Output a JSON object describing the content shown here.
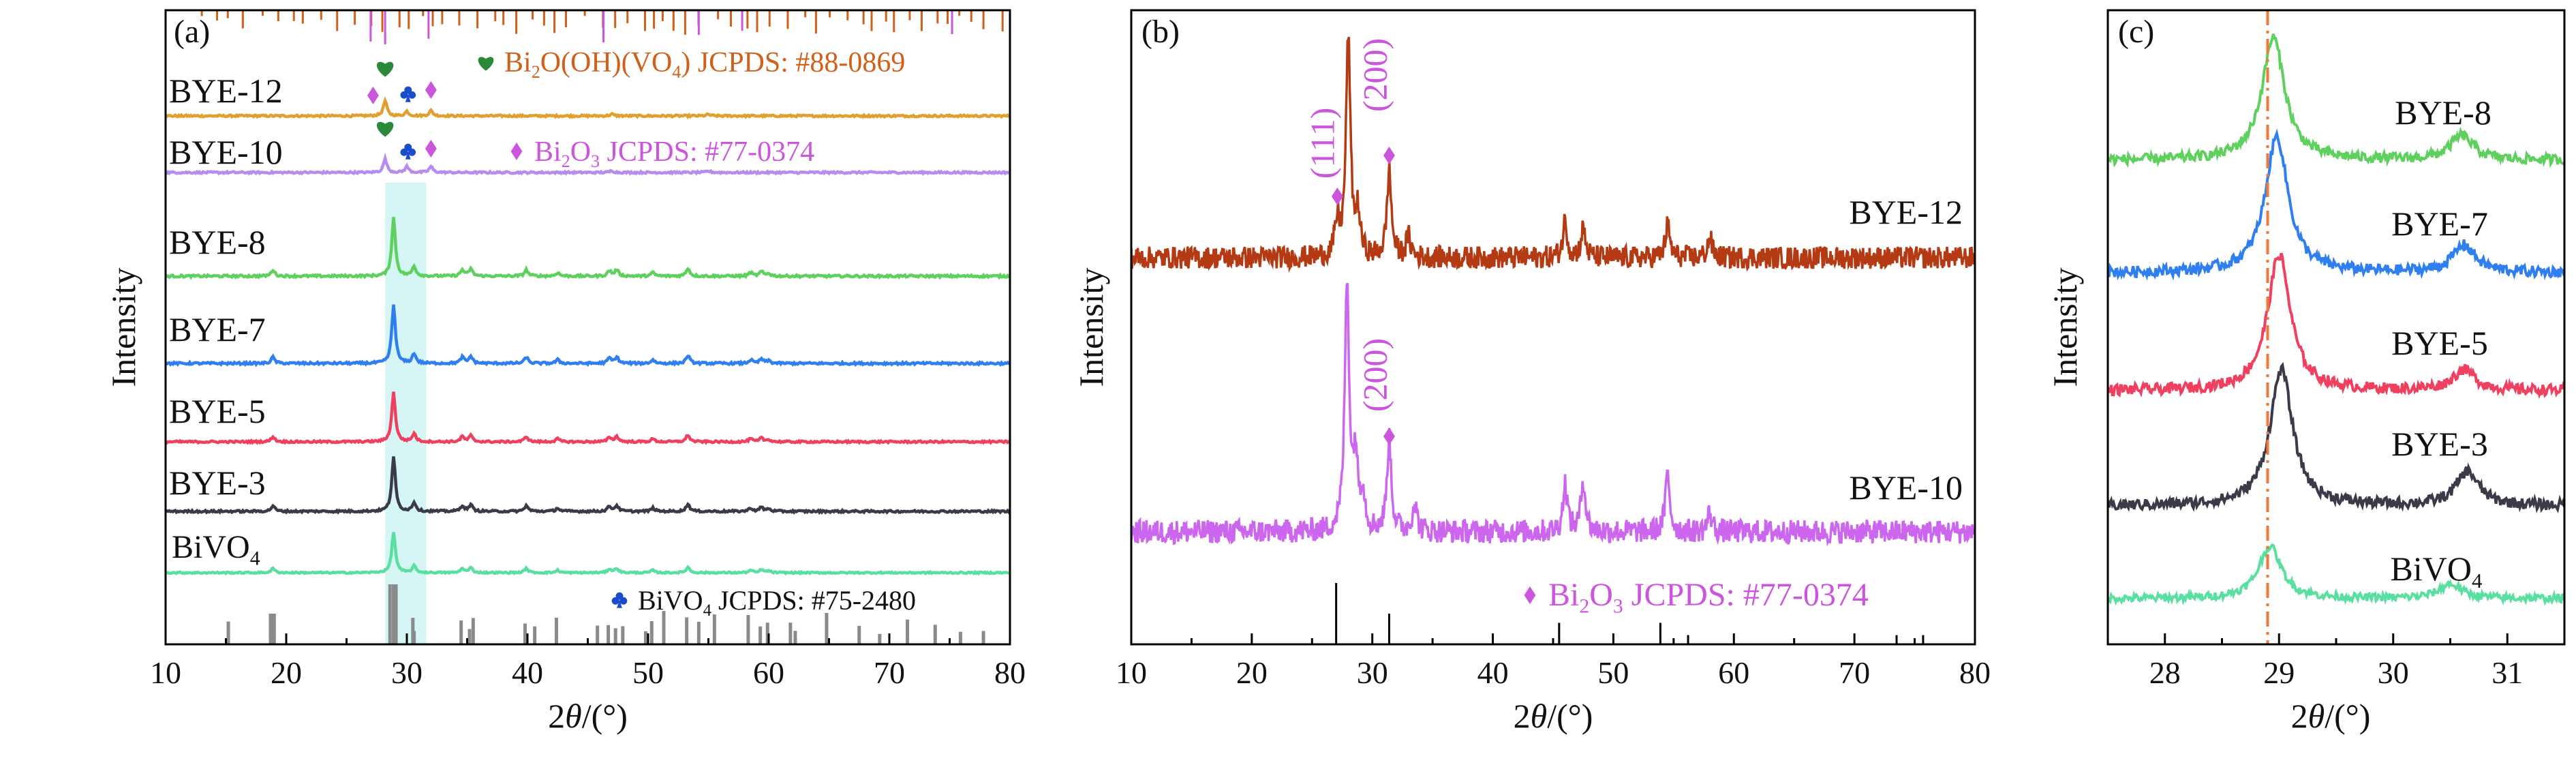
{
  "colors": {
    "bye12": "#e0a030",
    "bye10": "#b78cf0",
    "bye8": "#5ed05e",
    "bye7": "#2f7ff0",
    "bye5": "#ef4060",
    "bye3": "#3a3a48",
    "bivo4": "#59e0a0",
    "b_bye12": "#b43a14",
    "b_bye10": "#cc66ee",
    "ref_ortho": "#d0601a",
    "ref_bi2o3": "#cc55dd",
    "ref_bivo4": "#8a8a8a",
    "heart": "#2a8a3a",
    "club": "#1a4dcc",
    "highlight": "#aeeeee",
    "dashdot": "#f07838"
  },
  "icons": {
    "heart": "heart-icon",
    "diamond": "diamond-icon",
    "club": "club-icon"
  },
  "chart_data": [
    {
      "panel": "(a)",
      "type": "line",
      "xlabel": "2θ/(°)",
      "ylabel": "Intensity",
      "xlim": [
        10,
        80
      ],
      "xticks": [
        10,
        20,
        30,
        40,
        50,
        60,
        70,
        80
      ],
      "series_labels": [
        "BYE-12",
        "BYE-10",
        "BYE-8",
        "BYE-7",
        "BYE-5",
        "BYE-3",
        "BiVO₄"
      ],
      "peaks": {
        "BYE-12": [
          [
            28.2,
            1.0
          ],
          [
            30.0,
            0.3
          ],
          [
            32.0,
            0.35
          ],
          [
            47.0,
            0.12
          ],
          [
            55.0,
            0.1
          ]
        ],
        "BYE-10": [
          [
            28.2,
            0.9
          ],
          [
            30.0,
            0.4
          ],
          [
            32.0,
            0.4
          ],
          [
            47.0,
            0.12
          ],
          [
            55.0,
            0.1
          ]
        ],
        "BiVO4_type": [
          [
            18.9,
            0.35
          ],
          [
            28.9,
            3.3
          ],
          [
            30.6,
            0.55
          ],
          [
            34.6,
            0.35
          ],
          [
            35.3,
            0.4
          ],
          [
            39.9,
            0.35
          ],
          [
            42.5,
            0.2
          ],
          [
            46.8,
            0.3
          ],
          [
            47.4,
            0.35
          ],
          [
            50.4,
            0.2
          ],
          [
            53.3,
            0.45
          ],
          [
            58.5,
            0.2
          ],
          [
            59.4,
            0.25
          ],
          [
            60.0,
            0.15
          ]
        ]
      },
      "highlight_range": [
        28.2,
        31.6
      ],
      "annotations": [
        {
          "symbol": "heart",
          "text_parts": [
            "Bi",
            "2",
            "O(OH)(VO",
            "4",
            ") JCPDS: #88-0869"
          ]
        },
        {
          "symbol": "diamond",
          "text_parts": [
            "Bi",
            "2",
            "O",
            "3",
            " JCPDS: #77-0374"
          ]
        },
        {
          "symbol": "club",
          "text_parts": [
            "BiVO",
            "4",
            " JCPDS: #75-2480"
          ]
        }
      ],
      "ref_bivo4_lines": [
        15.2,
        18.7,
        18.9,
        19.0,
        28.6,
        28.9,
        29.1,
        30.5,
        30.6,
        34.5,
        35.2,
        35.5,
        39.8,
        40.6,
        42.4,
        45.8,
        46.7,
        47.3,
        47.9,
        49.8,
        50.3,
        51.3,
        53.2,
        54.2,
        55.5,
        58.3,
        59.3,
        59.9,
        61.8,
        62.2,
        64.8,
        67.5,
        69.2,
        71.5,
        73.8,
        75.9,
        77.8
      ]
    },
    {
      "panel": "(b)",
      "type": "line",
      "xlabel": "2θ/(°)",
      "ylabel": "Intensity",
      "xlim": [
        10,
        80
      ],
      "xticks": [
        10,
        20,
        30,
        40,
        50,
        60,
        70,
        80
      ],
      "series": [
        {
          "name": "BYE-12",
          "peaks": [
            [
              27.1,
              0.8
            ],
            [
              28.0,
              5.4
            ],
            [
              28.8,
              1.0
            ],
            [
              31.4,
              2.1
            ],
            [
              33.0,
              0.5
            ],
            [
              46.0,
              0.9
            ],
            [
              47.5,
              0.7
            ],
            [
              54.5,
              0.8
            ],
            [
              58.0,
              0.5
            ]
          ]
        },
        {
          "name": "BYE-10",
          "peaks": [
            [
              27.9,
              5.2
            ],
            [
              28.6,
              1.5
            ],
            [
              29.2,
              0.8
            ],
            [
              31.4,
              1.9
            ],
            [
              33.5,
              0.6
            ],
            [
              46.0,
              1.0
            ],
            [
              47.5,
              1.1
            ],
            [
              54.5,
              1.2
            ],
            [
              58.0,
              0.4
            ]
          ]
        }
      ],
      "peak_labels": [
        "(111)",
        "(200)",
        "(200)"
      ],
      "ref_text_parts": [
        "Bi",
        "2",
        "O",
        "3",
        " JCPDS: #77-0374"
      ],
      "ref_lines": [
        [
          27.0,
          1.0
        ],
        [
          31.4,
          0.5
        ],
        [
          45.5,
          0.35
        ],
        [
          53.9,
          0.35
        ],
        [
          56.2,
          0.15
        ],
        [
          73.5,
          0.15
        ],
        [
          75.7,
          0.15
        ]
      ]
    },
    {
      "panel": "(c)",
      "type": "line",
      "xlabel": "2θ/(°)",
      "ylabel": "Intensity",
      "xlim": [
        27.5,
        31.5
      ],
      "xticks": [
        28,
        29,
        30,
        31
      ],
      "series": [
        {
          "name": "BYE-8",
          "peaks": [
            [
              28.95,
              1.0
            ],
            [
              30.6,
              0.2
            ]
          ]
        },
        {
          "name": "BYE-7",
          "peaks": [
            [
              28.98,
              1.0
            ],
            [
              30.62,
              0.2
            ]
          ]
        },
        {
          "name": "BYE-5",
          "peaks": [
            [
              29.0,
              1.0
            ],
            [
              30.62,
              0.15
            ]
          ]
        },
        {
          "name": "BYE-3",
          "peaks": [
            [
              29.02,
              1.0
            ],
            [
              30.65,
              0.25
            ]
          ]
        },
        {
          "name": "BiVO₄",
          "peaks": [
            [
              28.92,
              0.55
            ],
            [
              30.5,
              0.15
            ]
          ]
        }
      ],
      "reference_line_x": 28.9
    }
  ]
}
